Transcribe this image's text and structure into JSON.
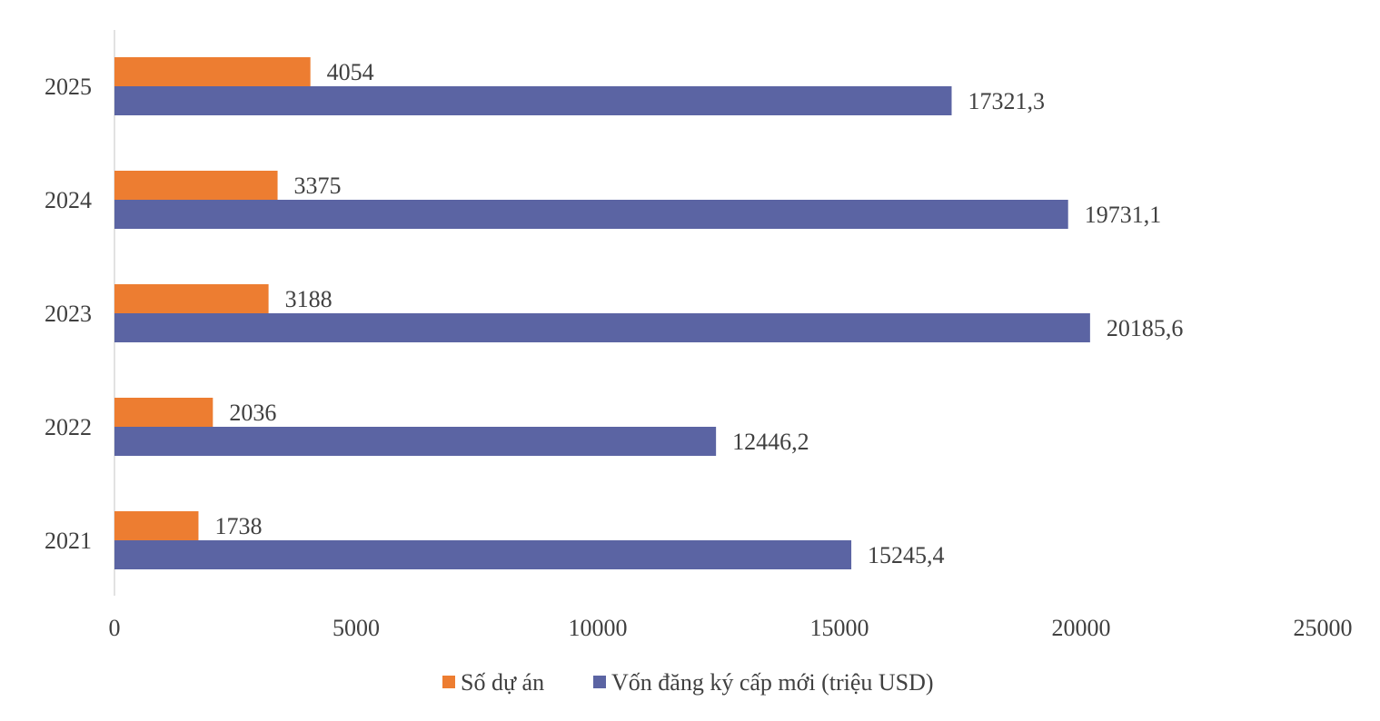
{
  "chart_data": {
    "type": "bar",
    "orientation": "horizontal",
    "categories": [
      "2021",
      "2022",
      "2023",
      "2024",
      "2025"
    ],
    "series": [
      {
        "name": "Số dự án",
        "color": "#ED7D31",
        "values": [
          1738,
          2036,
          3188,
          3375,
          4054
        ],
        "labels": [
          "1738",
          "2036",
          "3188",
          "3375",
          "4054"
        ]
      },
      {
        "name": "Vốn đăng ký cấp mới (triệu USD)",
        "color": "#5B64A3",
        "values": [
          15245.4,
          12446.2,
          20185.6,
          19731.1,
          17321.3
        ],
        "labels": [
          "15245,4",
          "12446,2",
          "20185,6",
          "19731,1",
          "17321,3"
        ]
      }
    ],
    "xlim": [
      0,
      25000
    ],
    "xticks": [
      0,
      5000,
      10000,
      15000,
      20000,
      25000
    ],
    "xtick_labels": [
      "0",
      "5000",
      "10000",
      "15000",
      "20000",
      "25000"
    ],
    "grid": false,
    "legend_position": "bottom"
  }
}
